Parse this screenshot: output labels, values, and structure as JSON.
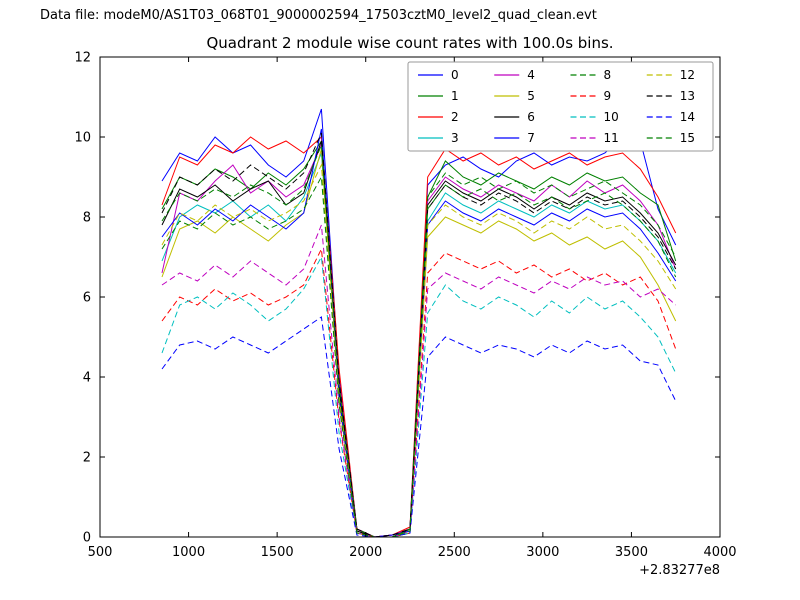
{
  "header": {
    "data_file_label": "Data file: modeM0/AS1T03_068T01_9000002594_17503cztM0_level2_quad_clean.evt"
  },
  "chart_data": {
    "type": "line",
    "title": "Quadrant 2 module wise count rates with 100.0s bins.",
    "xlabel": "",
    "ylabel": "",
    "x_offset_label": "+2.83277e8",
    "xlim": [
      500,
      4000
    ],
    "ylim": [
      0,
      12
    ],
    "xticks": [
      500,
      1000,
      1500,
      2000,
      2500,
      3000,
      3500,
      4000
    ],
    "yticks": [
      0,
      2,
      4,
      6,
      8,
      10,
      12
    ],
    "grid": false,
    "legend": {
      "location": "upper right",
      "ncol": 4,
      "entries": [
        "0",
        "1",
        "2",
        "3",
        "4",
        "5",
        "6",
        "7",
        "8",
        "9",
        "10",
        "11",
        "12",
        "13",
        "14",
        "15"
      ]
    },
    "palette": {
      "blue": "#0000ff",
      "green": "#008000",
      "red": "#ff0000",
      "cyan": "#00bfbf",
      "magenta": "#bf00bf",
      "yellow": "#bfbf00",
      "black": "#000000"
    },
    "x": [
      850,
      950,
      1050,
      1150,
      1250,
      1350,
      1450,
      1550,
      1650,
      1750,
      1850,
      1950,
      2050,
      2150,
      2250,
      2350,
      2450,
      2550,
      2650,
      2750,
      2850,
      2950,
      3050,
      3150,
      3250,
      3350,
      3450,
      3550,
      3650,
      3750
    ],
    "series": [
      {
        "name": "0",
        "color": "#0000ff",
        "dash": false,
        "values": [
          8.9,
          9.6,
          9.4,
          10.0,
          9.6,
          9.8,
          9.3,
          9.0,
          9.4,
          10.7,
          4.0,
          0.2,
          0.0,
          0.05,
          0.2,
          8.8,
          9.3,
          9.5,
          9.2,
          9.0,
          9.4,
          9.6,
          9.3,
          9.5,
          9.4,
          9.6,
          10.0,
          9.9,
          8.2,
          7.3
        ]
      },
      {
        "name": "1",
        "color": "#008000",
        "dash": false,
        "values": [
          8.2,
          9.0,
          8.8,
          9.2,
          9.0,
          8.7,
          9.1,
          8.8,
          9.2,
          9.9,
          3.8,
          0.15,
          0.0,
          0.0,
          0.2,
          8.5,
          9.4,
          9.0,
          8.8,
          9.1,
          8.9,
          8.7,
          9.0,
          8.8,
          9.1,
          8.9,
          9.0,
          8.6,
          8.3,
          6.9
        ]
      },
      {
        "name": "2",
        "color": "#ff0000",
        "dash": false,
        "values": [
          8.3,
          9.5,
          9.3,
          9.8,
          9.6,
          10.0,
          9.7,
          9.9,
          9.6,
          10.0,
          4.2,
          0.2,
          0.0,
          0.05,
          0.25,
          9.0,
          9.7,
          9.4,
          9.6,
          9.3,
          9.5,
          9.2,
          9.4,
          9.6,
          9.3,
          9.5,
          9.6,
          9.2,
          8.5,
          7.6
        ]
      },
      {
        "name": "3",
        "color": "#00bfbf",
        "dash": false,
        "values": [
          6.9,
          8.0,
          8.3,
          8.1,
          8.4,
          8.0,
          8.3,
          7.9,
          8.5,
          9.6,
          3.6,
          0.1,
          0.0,
          0.0,
          0.15,
          7.9,
          8.6,
          8.3,
          8.1,
          8.4,
          8.2,
          8.0,
          8.3,
          8.1,
          8.4,
          8.2,
          8.3,
          7.9,
          7.4,
          6.6
        ]
      },
      {
        "name": "4",
        "color": "#bf00bf",
        "dash": false,
        "values": [
          6.6,
          8.6,
          8.4,
          8.9,
          9.3,
          8.6,
          8.9,
          8.5,
          8.8,
          9.8,
          3.9,
          0.2,
          0.0,
          0.05,
          0.2,
          8.4,
          9.0,
          8.7,
          8.5,
          8.8,
          8.6,
          8.4,
          8.8,
          8.5,
          8.9,
          8.6,
          8.8,
          8.4,
          7.8,
          6.7
        ]
      },
      {
        "name": "5",
        "color": "#bfbf00",
        "dash": false,
        "values": [
          6.5,
          7.7,
          7.9,
          7.6,
          8.0,
          7.7,
          7.4,
          7.8,
          8.1,
          9.7,
          3.4,
          0.1,
          0.0,
          0.0,
          0.1,
          7.5,
          8.0,
          7.8,
          7.6,
          7.9,
          7.7,
          7.4,
          7.6,
          7.3,
          7.5,
          7.2,
          7.4,
          7.0,
          6.3,
          5.4
        ]
      },
      {
        "name": "6",
        "color": "#000000",
        "dash": false,
        "values": [
          7.8,
          8.7,
          8.5,
          8.8,
          8.4,
          8.7,
          8.9,
          8.3,
          8.6,
          9.9,
          3.7,
          0.15,
          0.0,
          0.0,
          0.2,
          8.3,
          8.9,
          8.6,
          8.4,
          8.7,
          8.5,
          8.2,
          8.5,
          8.3,
          8.6,
          8.4,
          8.5,
          8.1,
          7.6,
          6.8
        ]
      },
      {
        "name": "7",
        "color": "#0000ff",
        "dash": false,
        "values": [
          7.5,
          8.1,
          7.8,
          8.2,
          7.9,
          8.3,
          8.0,
          7.7,
          8.1,
          10.2,
          3.5,
          0.1,
          0.0,
          0.05,
          0.15,
          7.8,
          8.4,
          8.1,
          7.9,
          8.2,
          8.0,
          7.8,
          8.1,
          7.9,
          8.2,
          8.0,
          8.1,
          7.7,
          7.1,
          6.4
        ]
      },
      {
        "name": "8",
        "color": "#008000",
        "dash": true,
        "values": [
          7.9,
          8.6,
          8.4,
          8.7,
          8.5,
          8.8,
          8.6,
          8.3,
          8.7,
          9.8,
          3.8,
          0.2,
          0.0,
          0.0,
          0.2,
          8.5,
          9.1,
          8.8,
          9.0,
          8.7,
          8.9,
          8.6,
          8.8,
          8.5,
          8.7,
          8.9,
          8.6,
          8.3,
          7.8,
          7.0
        ]
      },
      {
        "name": "9",
        "color": "#ff0000",
        "dash": true,
        "values": [
          5.4,
          6.0,
          5.8,
          6.2,
          5.9,
          6.1,
          5.8,
          6.0,
          6.3,
          7.2,
          2.9,
          0.1,
          0.0,
          0.0,
          0.1,
          6.6,
          7.1,
          6.9,
          6.7,
          6.9,
          6.6,
          6.8,
          6.5,
          6.7,
          6.4,
          6.6,
          6.3,
          6.5,
          5.9,
          4.7
        ]
      },
      {
        "name": "10",
        "color": "#00bfbf",
        "dash": true,
        "values": [
          4.6,
          5.8,
          6.0,
          5.7,
          6.1,
          5.8,
          5.4,
          5.7,
          6.2,
          7.0,
          2.6,
          0.1,
          0.0,
          0.0,
          0.1,
          5.6,
          6.3,
          5.9,
          5.7,
          6.0,
          5.8,
          5.5,
          5.9,
          5.6,
          6.0,
          5.7,
          5.9,
          5.5,
          5.0,
          4.1
        ]
      },
      {
        "name": "11",
        "color": "#bf00bf",
        "dash": true,
        "values": [
          6.3,
          6.6,
          6.4,
          6.8,
          6.5,
          6.9,
          6.6,
          6.3,
          6.7,
          7.8,
          3.0,
          0.1,
          0.0,
          0.0,
          0.15,
          6.2,
          6.6,
          6.4,
          6.2,
          6.5,
          6.3,
          6.1,
          6.4,
          6.2,
          6.5,
          6.3,
          6.4,
          6.0,
          6.2,
          5.8
        ]
      },
      {
        "name": "12",
        "color": "#bfbf00",
        "dash": true,
        "values": [
          7.3,
          8.1,
          7.9,
          8.3,
          8.0,
          8.2,
          7.9,
          8.1,
          8.4,
          9.3,
          3.5,
          0.1,
          0.0,
          0.0,
          0.15,
          7.8,
          8.3,
          8.0,
          7.8,
          8.1,
          7.9,
          7.6,
          7.9,
          7.7,
          8.0,
          7.7,
          7.8,
          7.4,
          6.9,
          6.2
        ]
      },
      {
        "name": "13",
        "color": "#000000",
        "dash": true,
        "values": [
          8.1,
          9.0,
          8.8,
          9.2,
          8.9,
          9.3,
          9.0,
          8.7,
          9.1,
          10.1,
          3.9,
          0.2,
          0.0,
          0.05,
          0.2,
          8.2,
          8.8,
          8.5,
          8.3,
          8.6,
          8.4,
          8.1,
          8.4,
          8.2,
          8.5,
          8.3,
          8.4,
          8.0,
          7.5,
          6.7
        ]
      },
      {
        "name": "14",
        "color": "#0000ff",
        "dash": true,
        "values": [
          4.2,
          4.8,
          4.9,
          4.7,
          5.0,
          4.8,
          4.6,
          4.9,
          5.2,
          5.5,
          2.2,
          0.05,
          0.0,
          0.0,
          0.1,
          4.5,
          5.0,
          4.8,
          4.6,
          4.8,
          4.7,
          4.5,
          4.8,
          4.6,
          4.9,
          4.7,
          4.8,
          4.4,
          4.3,
          3.4
        ]
      },
      {
        "name": "15",
        "color": "#008000",
        "dash": true,
        "values": [
          7.2,
          7.9,
          7.7,
          8.1,
          7.8,
          8.0,
          7.7,
          7.9,
          8.2,
          9.0,
          3.3,
          0.1,
          0.0,
          0.0,
          0.15,
          8.2,
          8.8,
          8.5,
          8.7,
          8.4,
          8.6,
          8.3,
          8.5,
          8.2,
          8.4,
          8.6,
          8.3,
          7.9,
          7.4,
          6.5
        ]
      }
    ]
  }
}
